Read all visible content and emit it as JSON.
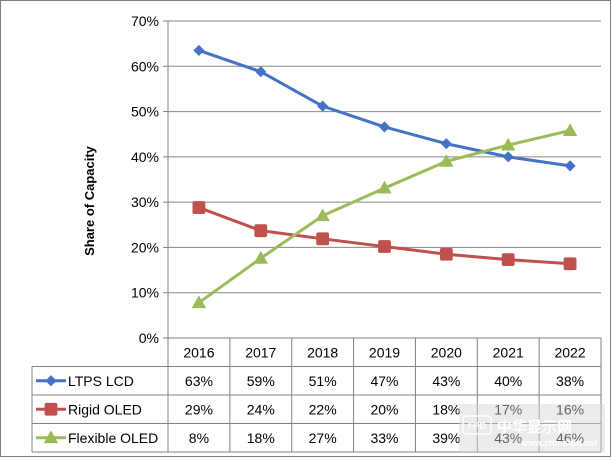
{
  "chart_data": {
    "type": "line",
    "title": "",
    "ylabel": "Share of Capacity",
    "ylim": [
      0,
      70
    ],
    "y_ticks": [
      0,
      10,
      20,
      30,
      40,
      50,
      60,
      70
    ],
    "y_tick_labels": [
      "0%",
      "10%",
      "20%",
      "30%",
      "40%",
      "50%",
      "60%",
      "70%"
    ],
    "grid": "horizontal",
    "categories": [
      "2016",
      "2017",
      "2018",
      "2019",
      "2020",
      "2021",
      "2022"
    ],
    "series": [
      {
        "name": "LTPS LCD",
        "color": "#4472c4",
        "marker": "diamond",
        "values": [
          63.5,
          58.8,
          51.2,
          46.6,
          42.9,
          40.0,
          38.0
        ],
        "labels": [
          "63%",
          "59%",
          "51%",
          "47%",
          "43%",
          "40%",
          "38%"
        ]
      },
      {
        "name": "Rigid OLED",
        "color": "#c0504d",
        "marker": "square",
        "values": [
          28.8,
          23.7,
          21.9,
          20.2,
          18.5,
          17.3,
          16.4
        ],
        "labels": [
          "29%",
          "24%",
          "22%",
          "20%",
          "18%",
          "17%",
          "16%"
        ]
      },
      {
        "name": "Flexible OLED",
        "color": "#9bbb59",
        "marker": "triangle",
        "values": [
          7.8,
          17.6,
          27.0,
          33.1,
          39.0,
          42.6,
          45.8
        ],
        "labels": [
          "8%",
          "18%",
          "27%",
          "33%",
          "39%",
          "43%",
          "46%"
        ]
      }
    ]
  },
  "watermark": {
    "text": "中华显示网",
    "url": "www.chinafpd.net",
    "badge": "FPD"
  }
}
